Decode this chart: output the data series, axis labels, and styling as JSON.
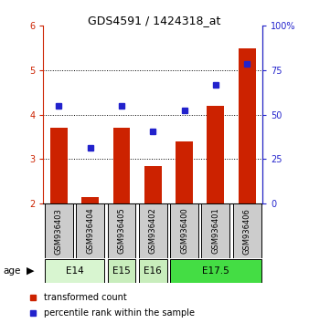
{
  "title": "GDS4591 / 1424318_at",
  "samples": [
    "GSM936403",
    "GSM936404",
    "GSM936405",
    "GSM936402",
    "GSM936400",
    "GSM936401",
    "GSM936406"
  ],
  "red_values": [
    3.7,
    2.15,
    3.7,
    2.85,
    3.4,
    4.2,
    5.5
  ],
  "blue_values": [
    4.2,
    3.25,
    4.2,
    3.62,
    4.1,
    4.68,
    5.15
  ],
  "ylim_left": [
    2,
    6
  ],
  "ylim_right": [
    0,
    100
  ],
  "yticks_left": [
    2,
    3,
    4,
    5,
    6
  ],
  "yticks_right": [
    0,
    25,
    50,
    75,
    100
  ],
  "ytick_labels_right": [
    "0",
    "25",
    "50",
    "75",
    "100%"
  ],
  "bar_color": "#cc2200",
  "dot_color": "#2222cc",
  "age_group_spans": [
    {
      "label": "E14",
      "start": 0,
      "end": 1,
      "color": "#d8f5d0"
    },
    {
      "label": "E15",
      "start": 2,
      "end": 2,
      "color": "#c8edbc"
    },
    {
      "label": "E16",
      "start": 3,
      "end": 3,
      "color": "#c8edbc"
    },
    {
      "label": "E17.5",
      "start": 4,
      "end": 6,
      "color": "#44dd44"
    }
  ],
  "legend_red_label": "transformed count",
  "legend_blue_label": "percentile rank within the sample",
  "sample_box_color": "#cccccc",
  "title_fontsize": 9,
  "tick_fontsize": 7,
  "sample_fontsize": 6,
  "age_fontsize": 7.5,
  "legend_fontsize": 7
}
